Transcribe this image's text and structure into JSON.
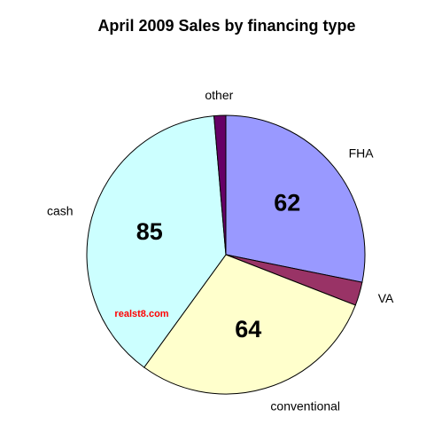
{
  "chart_data": {
    "type": "pie",
    "title": "April 2009 Sales by financing type",
    "categories": [
      "FHA",
      "VA",
      "conventional",
      "cash",
      "other"
    ],
    "values": [
      62,
      6,
      64,
      85,
      3
    ],
    "colors": [
      "#9999ff",
      "#993366",
      "#ffffcc",
      "#ccffff",
      "#660066"
    ],
    "watermark": "realst8.com"
  }
}
